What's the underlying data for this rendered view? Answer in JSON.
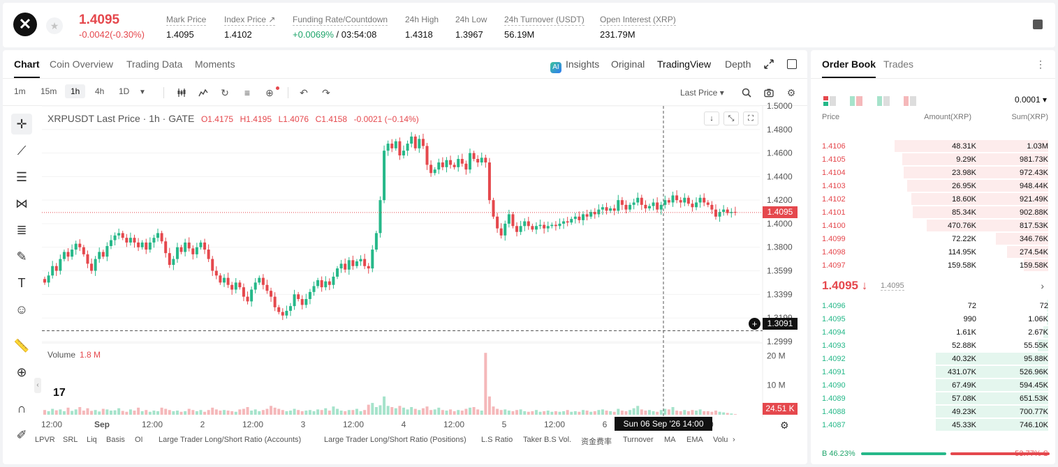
{
  "header": {
    "logo_glyph": "✕",
    "star_glyph": "★",
    "last_price": "1.4095",
    "change": "-0.0042(-0.30%)",
    "stats": [
      {
        "label": "Mark Price",
        "value": "1.4095"
      },
      {
        "label": "Index Price ↗",
        "value": "1.4102"
      },
      {
        "label": "Funding Rate/Countdown",
        "value_green": "+0.0069%",
        "value": " / 03:54:08"
      },
      {
        "label": "24h High",
        "value": "1.4318"
      },
      {
        "label": "24h Low",
        "value": "1.3967"
      },
      {
        "label": "24h Turnover (USDT)",
        "value": "56.19M"
      },
      {
        "label": "Open Interest (XRP)",
        "value": "231.79M"
      }
    ]
  },
  "chart_tabs": [
    "Chart",
    "Coin Overview",
    "Trading Data",
    "Moments"
  ],
  "view_tabs": {
    "insights": "Insights",
    "ai_badge": "AI",
    "original": "Original",
    "tradingview": "TradingView",
    "depth": "Depth"
  },
  "timeframes": [
    "1m",
    "15m",
    "1h",
    "4h",
    "1D"
  ],
  "price_type": "Last Price ▾",
  "legend": {
    "symbol": "XRPUSDT Last Price · 1h · GATE",
    "o": "O1.4175",
    "h": "H1.4195",
    "l": "L1.4076",
    "c": "C1.4158",
    "chg": "-0.0021 (−0.14%)"
  },
  "volume_legend": {
    "label": "Volume",
    "value": "1.8 M"
  },
  "price_axis": [
    "1.5000",
    "1.4800",
    "1.4600",
    "1.4400",
    "1.4200",
    "1.4000",
    "1.3800",
    "1.3599",
    "1.3399",
    "1.3199",
    "1.2999"
  ],
  "volume_axis": [
    "20 M",
    "10 M"
  ],
  "time_axis": [
    "12:00",
    "Sep",
    "12:00",
    "2",
    "12:00",
    "3",
    "12:00",
    "4",
    "12:00",
    "5",
    "12:00",
    "6",
    "12:00",
    "12:0"
  ],
  "tags": {
    "current_price": "1.4095",
    "crosshair_price": "1.3091",
    "volume": "24.51 K",
    "datetime": "Sun 06 Sep '26   14:00"
  },
  "tv_logo": "17",
  "indicators": [
    "LPVR",
    "SRL",
    "Liq",
    "Basis",
    "OI",
    "Large Trader Long/Short Ratio (Accounts)",
    "Large Trader Long/Short Ratio (Positions)",
    "L.S Ratio",
    "Taker B.S Vol.",
    "资金费率",
    "Turnover",
    "MA",
    "EMA",
    "Volu"
  ],
  "chart_data": {
    "type": "candlestick",
    "title": "XRPUSDT Last Price · 1h · GATE",
    "ylim": [
      1.2999,
      1.5
    ],
    "volume_ylim": [
      0,
      22
    ],
    "current_price": 1.4095,
    "crosshair_price": 1.3091,
    "x_ticks": [
      "12:00",
      "Sep",
      "12:00",
      "2",
      "12:00",
      "3",
      "12:00",
      "4",
      "12:00",
      "5",
      "12:00",
      "6",
      "12:00",
      "12:0"
    ],
    "close": [
      1.35,
      1.356,
      1.364,
      1.36,
      1.37,
      1.376,
      1.372,
      1.378,
      1.383,
      1.38,
      1.374,
      1.366,
      1.36,
      1.37,
      1.376,
      1.372,
      1.381,
      1.386,
      1.39,
      1.392,
      1.388,
      1.384,
      1.388,
      1.384,
      1.38,
      1.384,
      1.378,
      1.384,
      1.388,
      1.392,
      1.385,
      1.375,
      1.365,
      1.37,
      1.38,
      1.376,
      1.384,
      1.379,
      1.374,
      1.38,
      1.384,
      1.378,
      1.37,
      1.36,
      1.356,
      1.35,
      1.354,
      1.348,
      1.344,
      1.35,
      1.346,
      1.338,
      1.334,
      1.344,
      1.35,
      1.354,
      1.348,
      1.343,
      1.338,
      1.329,
      1.325,
      1.322,
      1.326,
      1.33,
      1.34,
      1.336,
      1.331,
      1.336,
      1.342,
      1.347,
      1.352,
      1.346,
      1.351,
      1.348,
      1.355,
      1.362,
      1.366,
      1.361,
      1.369,
      1.364,
      1.368,
      1.37,
      1.364,
      1.362,
      1.378,
      1.392,
      1.42,
      1.462,
      1.468,
      1.464,
      1.47,
      1.458,
      1.462,
      1.468,
      1.474,
      1.464,
      1.472,
      1.466,
      1.45,
      1.443,
      1.446,
      1.452,
      1.448,
      1.454,
      1.45,
      1.448,
      1.455,
      1.451,
      1.446,
      1.46,
      1.455,
      1.452,
      1.456,
      1.452,
      1.42,
      1.406,
      1.396,
      1.39,
      1.4,
      1.408,
      1.398,
      1.393,
      1.398,
      1.402,
      1.398,
      1.395,
      1.398,
      1.399,
      1.396,
      1.398,
      1.399,
      1.398,
      1.4,
      1.402,
      1.401,
      1.404,
      1.406,
      1.403,
      1.408,
      1.406,
      1.41,
      1.408,
      1.412,
      1.414,
      1.411,
      1.413,
      1.411,
      1.42,
      1.416,
      1.412,
      1.416,
      1.418,
      1.422,
      1.416,
      1.413,
      1.415,
      1.418,
      1.412,
      1.416,
      1.42,
      1.418,
      1.424,
      1.42,
      1.418,
      1.422,
      1.417,
      1.414,
      1.418,
      1.422,
      1.418,
      1.416,
      1.412,
      1.406,
      1.41,
      1.412,
      1.409,
      1.41,
      1.4095
    ],
    "volume": [
      1.6,
      1.2,
      2.0,
      1.5,
      1.8,
      1.2,
      2.4,
      1.3,
      1.8,
      2.6,
      1.4,
      2.2,
      1.3,
      1.6,
      1.1,
      2.0,
      1.8,
      1.4,
      1.5,
      2.2,
      1.3,
      1.0,
      1.8,
      1.4,
      2.4,
      1.2,
      1.6,
      1.0,
      1.4,
      1.2,
      2.4,
      2.0,
      1.6,
      1.2,
      1.4,
      1.0,
      1.2,
      2.0,
      1.6,
      1.2,
      1.6,
      1.0,
      1.6,
      2.4,
      1.8,
      1.4,
      1.6,
      1.4,
      1.2,
      1.0,
      1.8,
      2.0,
      2.6,
      1.4,
      1.8,
      1.2,
      1.6,
      2.0,
      3.0,
      2.4,
      2.0,
      1.6,
      1.2,
      1.4,
      2.0,
      1.6,
      1.2,
      1.4,
      1.6,
      1.2,
      1.8,
      1.6,
      2.2,
      1.4,
      2.8,
      2.0,
      1.4,
      1.2,
      1.6,
      1.6,
      2.0,
      1.2,
      1.6,
      3.4,
      4.0,
      2.6,
      3.2,
      6.2,
      3.0,
      2.6,
      2.2,
      3.0,
      2.4,
      1.8,
      2.6,
      2.0,
      1.6,
      2.2,
      2.8,
      1.6,
      1.8,
      2.4,
      1.6,
      1.4,
      1.8,
      1.2,
      1.6,
      1.4,
      2.0,
      2.4,
      2.6,
      1.8,
      1.4,
      21.0,
      6.2,
      2.8,
      2.0,
      1.6,
      1.8,
      1.4,
      1.2,
      1.6,
      1.8,
      1.2,
      1.0,
      1.2,
      1.6,
      1.0,
      1.2,
      1.4,
      1.0,
      1.2,
      1.0,
      1.2,
      1.6,
      1.0,
      1.2,
      1.0,
      1.6,
      1.4,
      1.0,
      1.2,
      1.6,
      1.8,
      1.4,
      1.2,
      1.0,
      2.0,
      1.4,
      1.2,
      1.6,
      2.2,
      3.0,
      1.8,
      1.4,
      1.6,
      1.2,
      1.0,
      1.6,
      2.0,
      1.8,
      2.6,
      1.4,
      1.2,
      1.6,
      1.2,
      1.6,
      1.4,
      1.8,
      1.2,
      1.2,
      1.0,
      1.4,
      1.0,
      0.8,
      0.6,
      0.4,
      0.2
    ]
  },
  "orderbook": {
    "tabs": [
      "Order Book",
      "Trades"
    ],
    "precision": "0.0001 ▾",
    "columns": {
      "price": "Price",
      "amount": "Amount(XRP)",
      "sum": "Sum(XRP)"
    },
    "asks": [
      {
        "price": "1.4106",
        "amount": "48.31K",
        "sum": "1.03M",
        "depth": 1.0
      },
      {
        "price": "1.4105",
        "amount": "9.29K",
        "sum": "981.73K",
        "depth": 0.95
      },
      {
        "price": "1.4104",
        "amount": "23.98K",
        "sum": "972.43K",
        "depth": 0.94
      },
      {
        "price": "1.4103",
        "amount": "26.95K",
        "sum": "948.44K",
        "depth": 0.92
      },
      {
        "price": "1.4102",
        "amount": "18.60K",
        "sum": "921.49K",
        "depth": 0.89
      },
      {
        "price": "1.4101",
        "amount": "85.34K",
        "sum": "902.88K",
        "depth": 0.88
      },
      {
        "price": "1.4100",
        "amount": "470.76K",
        "sum": "817.53K",
        "depth": 0.79
      },
      {
        "price": "1.4099",
        "amount": "72.22K",
        "sum": "346.76K",
        "depth": 0.34
      },
      {
        "price": "1.4098",
        "amount": "114.95K",
        "sum": "274.54K",
        "depth": 0.27
      },
      {
        "price": "1.4097",
        "amount": "159.58K",
        "sum": "159.58K",
        "depth": 0.16
      }
    ],
    "mid": {
      "price": "1.4095 ↓",
      "mark": "1.4095",
      "chevron": "›"
    },
    "bids": [
      {
        "price": "1.4096",
        "amount": "72",
        "sum": "72",
        "depth": 0.01
      },
      {
        "price": "1.4095",
        "amount": "990",
        "sum": "1.06K",
        "depth": 0.01
      },
      {
        "price": "1.4094",
        "amount": "1.61K",
        "sum": "2.67K",
        "depth": 0.03
      },
      {
        "price": "1.4093",
        "amount": "52.88K",
        "sum": "55.55K",
        "depth": 0.07
      },
      {
        "price": "1.4092",
        "amount": "40.32K",
        "sum": "95.88K",
        "depth": 0.73
      },
      {
        "price": "1.4091",
        "amount": "431.07K",
        "sum": "526.96K",
        "depth": 0.73
      },
      {
        "price": "1.4090",
        "amount": "67.49K",
        "sum": "594.45K",
        "depth": 0.73
      },
      {
        "price": "1.4089",
        "amount": "57.08K",
        "sum": "651.53K",
        "depth": 0.73
      },
      {
        "price": "1.4088",
        "amount": "49.23K",
        "sum": "700.77K",
        "depth": 0.73
      },
      {
        "price": "1.4087",
        "amount": "45.33K",
        "sum": "746.10K",
        "depth": 0.73
      }
    ],
    "ratio": {
      "buy": "B 46.23%",
      "sell": "53.77% S",
      "buy_fraction": 0.4623
    }
  },
  "colors": {
    "up": "#26b889",
    "down": "#e5484d",
    "up_bg": "#e4f6ee",
    "down_bg": "#fdecec"
  }
}
